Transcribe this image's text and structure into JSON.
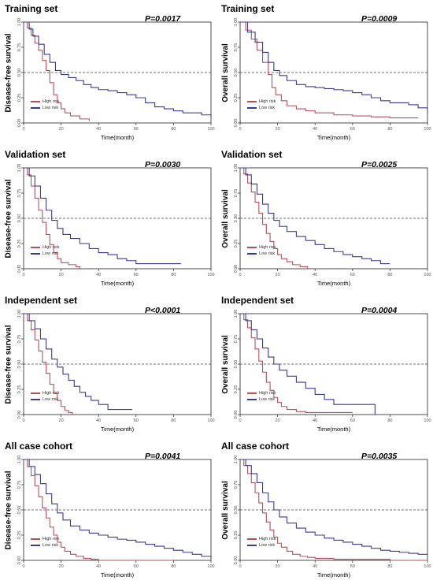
{
  "colors": {
    "high": "#b8505a",
    "low": "#3a3a94",
    "ref": "#444444"
  },
  "chart_data": [
    {
      "type": "line",
      "title": "Training set",
      "pvalue": "P=0.0017",
      "xlabel": "Time(month)",
      "ylabel": "Disease-free survival",
      "xlim": [
        0,
        100
      ],
      "ylim": [
        0,
        1
      ],
      "xticks": [
        "0",
        "20",
        "40",
        "60",
        "80",
        "100"
      ],
      "yticks": [
        "0.00",
        "0.25",
        "0.50",
        "0.75",
        "1.00"
      ],
      "reference_line": 0.5,
      "legend_position": "bottom-left",
      "series": [
        {
          "name": "High risk",
          "x": [
            0,
            2,
            4,
            6,
            8,
            10,
            12,
            14,
            16,
            18,
            20,
            22,
            25,
            30,
            35
          ],
          "y": [
            1,
            0.94,
            0.87,
            0.79,
            0.72,
            0.62,
            0.52,
            0.4,
            0.28,
            0.2,
            0.14,
            0.1,
            0.07,
            0.04,
            0.02
          ]
        },
        {
          "name": "Low risk",
          "x": [
            0,
            3,
            5,
            8,
            11,
            14,
            17,
            20,
            24,
            28,
            32,
            36,
            40,
            45,
            50,
            55,
            60,
            65,
            70,
            75,
            80,
            85,
            90,
            95,
            100
          ],
          "y": [
            1,
            0.93,
            0.86,
            0.78,
            0.68,
            0.6,
            0.52,
            0.48,
            0.45,
            0.42,
            0.38,
            0.35,
            0.33,
            0.32,
            0.3,
            0.28,
            0.25,
            0.2,
            0.16,
            0.14,
            0.12,
            0.1,
            0.1,
            0.08,
            0.05
          ]
        }
      ]
    },
    {
      "type": "line",
      "title": "Training set",
      "pvalue": "P=0.0009",
      "xlabel": "Time(month)",
      "ylabel": "Overall survival",
      "xlim": [
        0,
        100
      ],
      "ylim": [
        0,
        1
      ],
      "xticks": [
        "0",
        "20",
        "40",
        "60",
        "80",
        "100"
      ],
      "yticks": [
        "0.00",
        "0.25",
        "0.50",
        "0.75",
        "1.00"
      ],
      "reference_line": 0.5,
      "legend_position": "bottom-left",
      "series": [
        {
          "name": "High risk",
          "x": [
            0,
            3,
            6,
            9,
            12,
            15,
            17,
            19,
            22,
            25,
            30,
            35,
            40,
            50,
            60,
            70,
            80,
            90,
            95
          ],
          "y": [
            1,
            0.92,
            0.83,
            0.72,
            0.6,
            0.48,
            0.35,
            0.28,
            0.22,
            0.17,
            0.14,
            0.12,
            0.1,
            0.08,
            0.07,
            0.06,
            0.05,
            0.05,
            0.05
          ]
        },
        {
          "name": "Low risk",
          "x": [
            0,
            4,
            8,
            12,
            15,
            18,
            21,
            25,
            30,
            35,
            40,
            45,
            50,
            55,
            60,
            65,
            70,
            75,
            80,
            85,
            90,
            95,
            100
          ],
          "y": [
            1,
            0.9,
            0.8,
            0.7,
            0.6,
            0.52,
            0.47,
            0.42,
            0.38,
            0.36,
            0.35,
            0.34,
            0.33,
            0.32,
            0.3,
            0.28,
            0.25,
            0.22,
            0.2,
            0.2,
            0.18,
            0.15,
            0.1
          ]
        }
      ]
    },
    {
      "type": "line",
      "title": "Validation set",
      "pvalue": "P=0.0030",
      "xlabel": "Time(month)",
      "ylabel": "Disease-free survival",
      "xlim": [
        0,
        100
      ],
      "ylim": [
        0,
        1
      ],
      "xticks": [
        "0",
        "20",
        "40",
        "60",
        "80",
        "100"
      ],
      "yticks": [
        "0.00",
        "0.25",
        "0.50",
        "0.75",
        "1.00"
      ],
      "reference_line": 0.5,
      "legend_position": "bottom-left",
      "series": [
        {
          "name": "High risk",
          "x": [
            0,
            2,
            4,
            6,
            8,
            10,
            12,
            14,
            16,
            18,
            20,
            24,
            28,
            30
          ],
          "y": [
            1,
            0.93,
            0.82,
            0.7,
            0.58,
            0.46,
            0.34,
            0.24,
            0.16,
            0.1,
            0.06,
            0.04,
            0.02,
            0
          ]
        },
        {
          "name": "Low risk",
          "x": [
            0,
            3,
            6,
            9,
            12,
            15,
            18,
            21,
            25,
            30,
            35,
            40,
            45,
            50,
            55,
            60,
            70,
            80,
            84
          ],
          "y": [
            1,
            0.92,
            0.82,
            0.7,
            0.58,
            0.48,
            0.4,
            0.34,
            0.3,
            0.25,
            0.2,
            0.16,
            0.14,
            0.1,
            0.08,
            0.05,
            0.05,
            0.05,
            0.05
          ]
        }
      ]
    },
    {
      "type": "line",
      "title": "Validation set",
      "pvalue": "P=0.0025",
      "xlabel": "Time(month)",
      "ylabel": "Overall survival",
      "xlim": [
        0,
        100
      ],
      "ylim": [
        0,
        1
      ],
      "xticks": [
        "0",
        "20",
        "40",
        "60",
        "80",
        "100"
      ],
      "yticks": [
        "0.00",
        "0.25",
        "0.50",
        "0.75",
        "1.00"
      ],
      "reference_line": 0.5,
      "legend_position": "bottom-left",
      "series": [
        {
          "name": "High risk",
          "x": [
            0,
            2,
            4,
            6,
            8,
            10,
            12,
            14,
            16,
            18,
            20,
            22,
            25,
            28,
            32,
            36
          ],
          "y": [
            1,
            0.94,
            0.85,
            0.76,
            0.66,
            0.55,
            0.44,
            0.35,
            0.27,
            0.2,
            0.14,
            0.1,
            0.07,
            0.04,
            0.02,
            0
          ]
        },
        {
          "name": "Low risk",
          "x": [
            0,
            3,
            6,
            9,
            12,
            15,
            18,
            21,
            25,
            30,
            35,
            40,
            45,
            50,
            55,
            60,
            65,
            70,
            75,
            80
          ],
          "y": [
            1,
            0.93,
            0.84,
            0.74,
            0.64,
            0.55,
            0.48,
            0.42,
            0.37,
            0.32,
            0.28,
            0.24,
            0.2,
            0.17,
            0.14,
            0.12,
            0.1,
            0.08,
            0.05,
            0.05
          ]
        }
      ]
    },
    {
      "type": "line",
      "title": "Independent set",
      "pvalue": "P<0.0001",
      "xlabel": "Time(month)",
      "ylabel": "Disease-free survival",
      "xlim": [
        0,
        100
      ],
      "ylim": [
        0,
        1
      ],
      "xticks": [
        "0",
        "20",
        "40",
        "60",
        "80",
        "100"
      ],
      "yticks": [
        "0.00",
        "0.25",
        "0.50",
        "0.75",
        "1.00"
      ],
      "reference_line": 0.5,
      "legend_position": "bottom-left",
      "series": [
        {
          "name": "High risk",
          "x": [
            0,
            2,
            4,
            6,
            8,
            10,
            12,
            14,
            16,
            18,
            20,
            22,
            24,
            26
          ],
          "y": [
            1,
            0.93,
            0.84,
            0.74,
            0.63,
            0.52,
            0.41,
            0.3,
            0.21,
            0.14,
            0.08,
            0.04,
            0.02,
            0
          ]
        },
        {
          "name": "Low risk",
          "x": [
            0,
            3,
            6,
            9,
            12,
            15,
            18,
            21,
            24,
            27,
            30,
            33,
            36,
            40,
            45,
            50,
            55,
            58
          ],
          "y": [
            1,
            0.93,
            0.85,
            0.75,
            0.65,
            0.55,
            0.47,
            0.4,
            0.34,
            0.28,
            0.22,
            0.18,
            0.14,
            0.1,
            0.05,
            0.05,
            0.05,
            0.05
          ]
        }
      ]
    },
    {
      "type": "line",
      "title": "Independent set",
      "pvalue": "P=0.0004",
      "xlabel": "Time(month)",
      "ylabel": "Overall survival",
      "xlim": [
        0,
        100
      ],
      "ylim": [
        0,
        1
      ],
      "xticks": [
        "0",
        "20",
        "40",
        "60",
        "80",
        "100"
      ],
      "yticks": [
        "0.00",
        "0.25",
        "0.50",
        "0.75",
        "1.00"
      ],
      "reference_line": 0.5,
      "legend_position": "bottom-left",
      "series": [
        {
          "name": "High risk",
          "x": [
            0,
            2,
            4,
            6,
            8,
            10,
            12,
            14,
            16,
            18,
            20,
            22,
            25,
            30,
            35,
            40,
            50,
            60
          ],
          "y": [
            1,
            0.94,
            0.86,
            0.76,
            0.65,
            0.53,
            0.42,
            0.32,
            0.24,
            0.17,
            0.12,
            0.08,
            0.05,
            0.03,
            0.02,
            0.02,
            0.02,
            0.02
          ]
        },
        {
          "name": "Low risk",
          "x": [
            0,
            3,
            6,
            9,
            12,
            15,
            18,
            21,
            25,
            30,
            35,
            40,
            45,
            50,
            55,
            60,
            65,
            70,
            72
          ],
          "y": [
            1,
            0.93,
            0.84,
            0.75,
            0.66,
            0.57,
            0.5,
            0.44,
            0.38,
            0.32,
            0.26,
            0.2,
            0.15,
            0.1,
            0.1,
            0.1,
            0.1,
            0.1,
            0
          ]
        }
      ]
    },
    {
      "type": "line",
      "title": "All case cohort",
      "pvalue": "P=0.0041",
      "xlabel": "Time(month)",
      "ylabel": "Disease-free survival",
      "xlim": [
        0,
        100
      ],
      "ylim": [
        0,
        1
      ],
      "xticks": [
        "0",
        "20",
        "40",
        "60",
        "80",
        "100"
      ],
      "yticks": [
        "0.00",
        "0.25",
        "0.50",
        "0.75",
        "1.00"
      ],
      "reference_line": 0.5,
      "legend_position": "bottom-left",
      "series": [
        {
          "name": "High risk",
          "x": [
            0,
            2,
            4,
            6,
            8,
            10,
            12,
            14,
            16,
            18,
            20,
            22,
            25,
            28,
            32,
            36,
            40,
            50,
            60,
            80
          ],
          "y": [
            1,
            0.93,
            0.84,
            0.74,
            0.63,
            0.52,
            0.42,
            0.33,
            0.25,
            0.18,
            0.13,
            0.09,
            0.06,
            0.04,
            0.02,
            0.01,
            0,
            0,
            0,
            0
          ]
        },
        {
          "name": "Low risk",
          "x": [
            0,
            3,
            6,
            9,
            12,
            15,
            18,
            21,
            25,
            30,
            35,
            40,
            45,
            50,
            55,
            60,
            65,
            70,
            75,
            80,
            85,
            90,
            95,
            100
          ],
          "y": [
            1,
            0.93,
            0.85,
            0.76,
            0.66,
            0.56,
            0.47,
            0.4,
            0.34,
            0.3,
            0.27,
            0.25,
            0.23,
            0.21,
            0.2,
            0.18,
            0.16,
            0.14,
            0.12,
            0.1,
            0.08,
            0.06,
            0.04,
            0.02
          ]
        }
      ]
    },
    {
      "type": "line",
      "title": "All case cohort",
      "pvalue": "P=0.0035",
      "xlabel": "Time(month)",
      "ylabel": "Overall survival",
      "xlim": [
        0,
        100
      ],
      "ylim": [
        0,
        1
      ],
      "xticks": [
        "0",
        "20",
        "40",
        "60",
        "80",
        "100"
      ],
      "yticks": [
        "0.00",
        "0.25",
        "0.50",
        "0.75",
        "1.00"
      ],
      "reference_line": 0.5,
      "legend_position": "bottom-left",
      "series": [
        {
          "name": "High risk",
          "x": [
            0,
            2,
            4,
            6,
            8,
            10,
            12,
            14,
            16,
            18,
            20,
            22,
            25,
            28,
            32,
            36,
            40,
            50,
            60,
            80,
            100
          ],
          "y": [
            1,
            0.94,
            0.86,
            0.77,
            0.67,
            0.57,
            0.47,
            0.38,
            0.3,
            0.23,
            0.17,
            0.13,
            0.09,
            0.06,
            0.04,
            0.03,
            0.02,
            0.01,
            0.01,
            0,
            0
          ]
        },
        {
          "name": "Low risk",
          "x": [
            0,
            3,
            6,
            9,
            12,
            15,
            18,
            21,
            25,
            30,
            35,
            40,
            45,
            50,
            55,
            60,
            65,
            70,
            75,
            80,
            85,
            90,
            95,
            100
          ],
          "y": [
            1,
            0.94,
            0.86,
            0.77,
            0.67,
            0.58,
            0.5,
            0.43,
            0.37,
            0.32,
            0.28,
            0.25,
            0.22,
            0.2,
            0.18,
            0.16,
            0.14,
            0.12,
            0.1,
            0.09,
            0.08,
            0.07,
            0.06,
            0.05
          ]
        }
      ]
    }
  ]
}
